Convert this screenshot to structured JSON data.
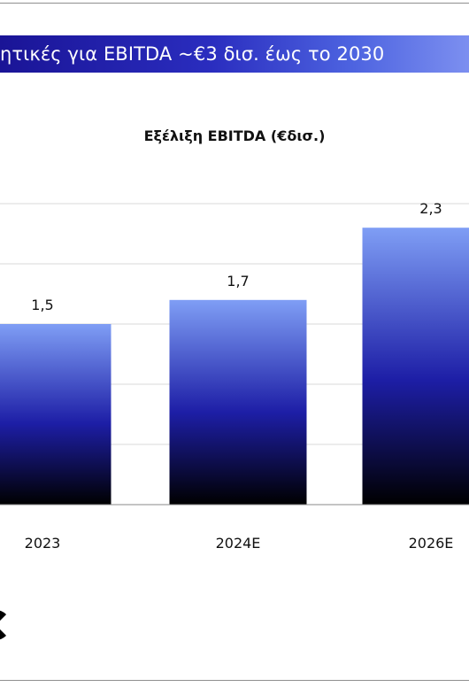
{
  "banner": {
    "text": "ητικές για EBITDA ~€3 δισ. έως το 2030"
  },
  "chart_data": {
    "type": "bar",
    "title": "Εξέλιξη EBITDA (€δισ.)",
    "xlabel": "",
    "ylabel": "",
    "categories": [
      "2023",
      "2024E",
      "2026E"
    ],
    "values": [
      1.5,
      1.7,
      2.3
    ],
    "value_labels": [
      "1,5",
      "1,7",
      "2,3"
    ],
    "ylim": [
      0,
      2.5
    ],
    "grid": true,
    "gridlines": [
      0.5,
      1.0,
      1.5,
      2.0,
      2.5
    ],
    "bar_gradient": [
      "#7f9ef5",
      "#1d1ea6",
      "#000000"
    ],
    "grid_color": "#d9d9d9",
    "axis_color": "#8a8a8a"
  },
  "logo": {
    "icon": "brand-logo-icon"
  }
}
